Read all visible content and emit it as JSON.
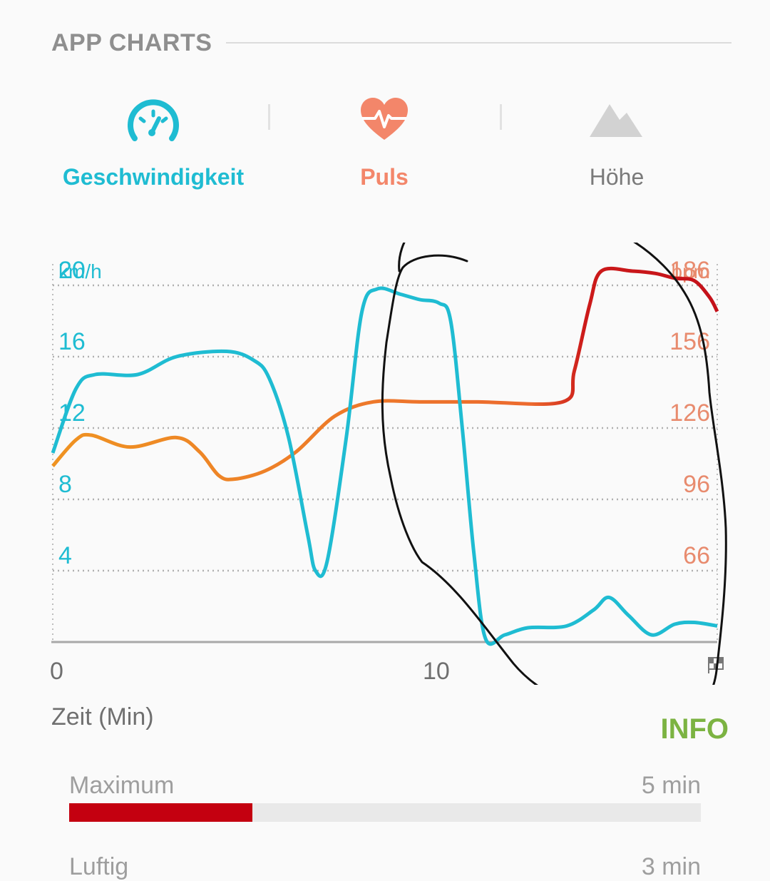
{
  "section": {
    "title": "APP CHARTS"
  },
  "tabs": [
    {
      "label": "Geschwindigkeit",
      "icon": "speedometer-icon",
      "color": "#1fbcd2",
      "active": true
    },
    {
      "label": "Puls",
      "icon": "heart-pulse-icon",
      "color": "#f3866a",
      "active": true
    },
    {
      "label": "Höhe",
      "icon": "mountain-icon",
      "color": "#7a7a7a",
      "active": false
    }
  ],
  "chart_data": {
    "type": "line",
    "x_axis": {
      "label": "Zeit (Min)",
      "ticks": [
        "0",
        "10"
      ],
      "range": [
        0,
        17.2
      ],
      "end_icon": "finish-flag-icon"
    },
    "y_left": {
      "unit": "km/h",
      "ticks": [
        4,
        8,
        12,
        16,
        20
      ],
      "range": [
        0,
        20
      ],
      "color": "#1fbcd2"
    },
    "y_right": {
      "unit": "bpm",
      "ticks": [
        66,
        96,
        126,
        156,
        186
      ],
      "range": [
        36,
        186
      ],
      "color": "#e88b6e"
    },
    "grid": true,
    "series": [
      {
        "axis": "left",
        "color": "#1fbcd2",
        "points": [
          [
            0,
            10.6
          ],
          [
            0.6,
            14.2
          ],
          [
            1.1,
            15.0
          ],
          [
            2.2,
            15.0
          ],
          [
            3.2,
            16.0
          ],
          [
            4.5,
            16.3
          ],
          [
            5.2,
            15.8
          ],
          [
            5.6,
            14.8
          ],
          [
            6.1,
            11.5
          ],
          [
            6.6,
            6.0
          ],
          [
            6.8,
            4.0
          ],
          [
            7.1,
            4.5
          ],
          [
            7.6,
            11.5
          ],
          [
            8.0,
            18.5
          ],
          [
            8.4,
            19.8
          ],
          [
            9.0,
            19.5
          ],
          [
            9.5,
            19.2
          ],
          [
            10.0,
            19.0
          ],
          [
            10.3,
            18.0
          ],
          [
            10.6,
            12.0
          ],
          [
            10.9,
            5.0
          ],
          [
            11.2,
            0.2
          ],
          [
            11.7,
            0.4
          ],
          [
            12.3,
            0.8
          ],
          [
            13.3,
            0.9
          ],
          [
            14.0,
            1.8
          ],
          [
            14.4,
            2.5
          ],
          [
            14.9,
            1.5
          ],
          [
            15.5,
            0.4
          ],
          [
            16.1,
            1.0
          ],
          [
            16.6,
            1.1
          ],
          [
            17.2,
            0.9
          ]
        ]
      },
      {
        "axis": "right",
        "color_stops": [
          "#ef9322",
          "#ec6a2e",
          "#c4111a"
        ],
        "points": [
          [
            0,
            110
          ],
          [
            0.6,
            121
          ],
          [
            1.0,
            123
          ],
          [
            2.0,
            118
          ],
          [
            3.2,
            122
          ],
          [
            3.8,
            116
          ],
          [
            4.3,
            106
          ],
          [
            4.7,
            104.5
          ],
          [
            5.5,
            108
          ],
          [
            6.3,
            116
          ],
          [
            7.3,
            131
          ],
          [
            8.3,
            137
          ],
          [
            9.5,
            137
          ],
          [
            11.0,
            137
          ],
          [
            13.2,
            137
          ],
          [
            13.5,
            150
          ],
          [
            13.9,
            178
          ],
          [
            14.2,
            192
          ],
          [
            15.0,
            192
          ],
          [
            15.6,
            191
          ],
          [
            16.1,
            189
          ],
          [
            16.6,
            188
          ],
          [
            17.0,
            181
          ],
          [
            17.2,
            175
          ]
        ]
      }
    ]
  },
  "info_button": {
    "label": "INFO"
  },
  "heart_rate_zone": {
    "label": "Maximum",
    "value": "5 min",
    "fraction": 0.29,
    "color": "#c40010"
  },
  "next_zone": {
    "label": "Luftig",
    "value": "3 min"
  }
}
